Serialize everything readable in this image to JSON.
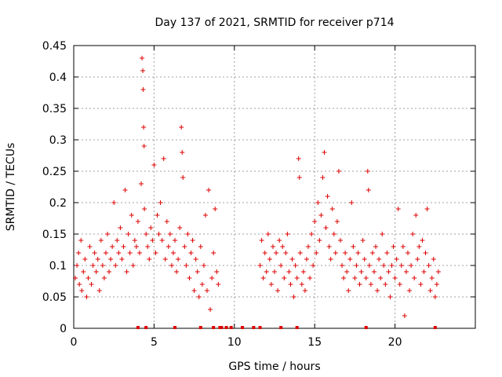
{
  "chart_data": {
    "type": "scatter",
    "title": "Day 137 of 2021, SRMTID for receiver p714",
    "xlabel": "GPS time / hours",
    "ylabel": "SRMTID / TECUs",
    "xlim": [
      0,
      25
    ],
    "ylim": [
      0,
      0.45
    ],
    "grid": true,
    "marker": "+",
    "color": "#dd0000",
    "x_ticks": [
      0,
      5,
      10,
      15,
      20
    ],
    "x_tick_labels": [
      "0",
      "5",
      "10",
      "15",
      "20"
    ],
    "y_ticks": [
      0,
      0.05,
      0.1,
      0.15,
      0.2,
      0.25,
      0.3,
      0.35,
      0.4,
      0.45
    ],
    "y_tick_labels": [
      "0",
      "0.05",
      "0.1",
      "0.15",
      "0.2",
      "0.25",
      "0.3",
      "0.35",
      "0.4",
      "0.45"
    ],
    "series": [
      {
        "name": "SRMTID",
        "points": [
          [
            0.1,
            0.08
          ],
          [
            0.2,
            0.1
          ],
          [
            0.3,
            0.12
          ],
          [
            0.35,
            0.07
          ],
          [
            0.45,
            0.14
          ],
          [
            0.5,
            0.06
          ],
          [
            0.6,
            0.09
          ],
          [
            0.7,
            0.11
          ],
          [
            0.8,
            0.05
          ],
          [
            0.9,
            0.08
          ],
          [
            1.0,
            0.13
          ],
          [
            1.1,
            0.07
          ],
          [
            1.2,
            0.1
          ],
          [
            1.3,
            0.12
          ],
          [
            1.4,
            0.09
          ],
          [
            1.5,
            0.11
          ],
          [
            1.6,
            0.06
          ],
          [
            1.7,
            0.14
          ],
          [
            1.8,
            0.1
          ],
          [
            1.9,
            0.08
          ],
          [
            2.0,
            0.12
          ],
          [
            2.1,
            0.15
          ],
          [
            2.2,
            0.09
          ],
          [
            2.3,
            0.11
          ],
          [
            2.4,
            0.13
          ],
          [
            2.5,
            0.2
          ],
          [
            2.6,
            0.1
          ],
          [
            2.7,
            0.14
          ],
          [
            2.8,
            0.12
          ],
          [
            2.9,
            0.16
          ],
          [
            3.0,
            0.11
          ],
          [
            3.1,
            0.13
          ],
          [
            3.2,
            0.22
          ],
          [
            3.3,
            0.09
          ],
          [
            3.4,
            0.15
          ],
          [
            3.5,
            0.12
          ],
          [
            3.6,
            0.18
          ],
          [
            3.7,
            0.1
          ],
          [
            3.8,
            0.14
          ],
          [
            3.9,
            0.13
          ],
          [
            4.0,
            0.17
          ],
          [
            4.1,
            0.12
          ],
          [
            4.2,
            0.23
          ],
          [
            4.25,
            0.43
          ],
          [
            4.3,
            0.41
          ],
          [
            4.32,
            0.38
          ],
          [
            4.35,
            0.32
          ],
          [
            4.38,
            0.29
          ],
          [
            4.4,
            0.19
          ],
          [
            4.5,
            0.15
          ],
          [
            4.6,
            0.13
          ],
          [
            4.7,
            0.11
          ],
          [
            4.8,
            0.16
          ],
          [
            4.9,
            0.14
          ],
          [
            5.0,
            0.26
          ],
          [
            5.1,
            0.12
          ],
          [
            5.2,
            0.18
          ],
          [
            5.3,
            0.15
          ],
          [
            5.4,
            0.2
          ],
          [
            5.5,
            0.14
          ],
          [
            5.6,
            0.27
          ],
          [
            5.7,
            0.11
          ],
          [
            5.8,
            0.17
          ],
          [
            5.9,
            0.13
          ],
          [
            6.0,
            0.15
          ],
          [
            6.1,
            0.1
          ],
          [
            6.2,
            0.12
          ],
          [
            6.3,
            0.14
          ],
          [
            6.4,
            0.09
          ],
          [
            6.5,
            0.11
          ],
          [
            6.6,
            0.16
          ],
          [
            6.7,
            0.32
          ],
          [
            6.75,
            0.28
          ],
          [
            6.8,
            0.24
          ],
          [
            6.9,
            0.13
          ],
          [
            7.0,
            0.1
          ],
          [
            7.1,
            0.15
          ],
          [
            7.2,
            0.08
          ],
          [
            7.3,
            0.12
          ],
          [
            7.4,
            0.14
          ],
          [
            7.5,
            0.06
          ],
          [
            7.6,
            0.11
          ],
          [
            7.7,
            0.09
          ],
          [
            7.8,
            0.05
          ],
          [
            7.9,
            0.13
          ],
          [
            8.0,
            0.07
          ],
          [
            8.1,
            0.1
          ],
          [
            8.2,
            0.18
          ],
          [
            8.3,
            0.06
          ],
          [
            8.4,
            0.22
          ],
          [
            8.5,
            0.03
          ],
          [
            8.6,
            0.08
          ],
          [
            8.7,
            0.12
          ],
          [
            8.8,
            0.19
          ],
          [
            8.9,
            0.09
          ],
          [
            9.0,
            0.07
          ],
          [
            11.6,
            0.1
          ],
          [
            11.7,
            0.14
          ],
          [
            11.8,
            0.08
          ],
          [
            11.9,
            0.12
          ],
          [
            12.0,
            0.09
          ],
          [
            12.1,
            0.15
          ],
          [
            12.2,
            0.11
          ],
          [
            12.3,
            0.07
          ],
          [
            12.4,
            0.13
          ],
          [
            12.5,
            0.09
          ],
          [
            12.6,
            0.12
          ],
          [
            12.7,
            0.06
          ],
          [
            12.8,
            0.14
          ],
          [
            12.9,
            0.1
          ],
          [
            13.0,
            0.13
          ],
          [
            13.1,
            0.08
          ],
          [
            13.2,
            0.12
          ],
          [
            13.3,
            0.15
          ],
          [
            13.4,
            0.09
          ],
          [
            13.5,
            0.07
          ],
          [
            13.6,
            0.11
          ],
          [
            13.7,
            0.05
          ],
          [
            13.8,
            0.1
          ],
          [
            13.9,
            0.08
          ],
          [
            14.0,
            0.27
          ],
          [
            14.05,
            0.24
          ],
          [
            14.1,
            0.12
          ],
          [
            14.2,
            0.07
          ],
          [
            14.3,
            0.09
          ],
          [
            14.4,
            0.06
          ],
          [
            14.5,
            0.11
          ],
          [
            14.6,
            0.13
          ],
          [
            14.7,
            0.08
          ],
          [
            14.8,
            0.15
          ],
          [
            14.9,
            0.1
          ],
          [
            15.0,
            0.17
          ],
          [
            15.1,
            0.12
          ],
          [
            15.2,
            0.2
          ],
          [
            15.3,
            0.14
          ],
          [
            15.4,
            0.18
          ],
          [
            15.5,
            0.24
          ],
          [
            15.6,
            0.28
          ],
          [
            15.7,
            0.16
          ],
          [
            15.8,
            0.21
          ],
          [
            15.9,
            0.13
          ],
          [
            16.0,
            0.11
          ],
          [
            16.1,
            0.19
          ],
          [
            16.2,
            0.15
          ],
          [
            16.3,
            0.12
          ],
          [
            16.4,
            0.17
          ],
          [
            16.5,
            0.25
          ],
          [
            16.6,
            0.14
          ],
          [
            16.7,
            0.1
          ],
          [
            16.8,
            0.08
          ],
          [
            16.9,
            0.12
          ],
          [
            17.0,
            0.09
          ],
          [
            17.1,
            0.06
          ],
          [
            17.2,
            0.11
          ],
          [
            17.3,
            0.2
          ],
          [
            17.4,
            0.13
          ],
          [
            17.5,
            0.08
          ],
          [
            17.6,
            0.1
          ],
          [
            17.7,
            0.12
          ],
          [
            17.8,
            0.07
          ],
          [
            17.9,
            0.09
          ],
          [
            18.0,
            0.14
          ],
          [
            18.1,
            0.11
          ],
          [
            18.2,
            0.08
          ],
          [
            18.3,
            0.25
          ],
          [
            18.35,
            0.22
          ],
          [
            18.4,
            0.1
          ],
          [
            18.5,
            0.07
          ],
          [
            18.6,
            0.12
          ],
          [
            18.7,
            0.09
          ],
          [
            18.8,
            0.13
          ],
          [
            18.9,
            0.06
          ],
          [
            19.0,
            0.11
          ],
          [
            19.1,
            0.08
          ],
          [
            19.2,
            0.15
          ],
          [
            19.3,
            0.1
          ],
          [
            19.4,
            0.07
          ],
          [
            19.5,
            0.12
          ],
          [
            19.6,
            0.09
          ],
          [
            19.7,
            0.05
          ],
          [
            19.8,
            0.1
          ],
          [
            19.9,
            0.13
          ],
          [
            20.0,
            0.08
          ],
          [
            20.1,
            0.11
          ],
          [
            20.2,
            0.19
          ],
          [
            20.3,
            0.07
          ],
          [
            20.4,
            0.1
          ],
          [
            20.5,
            0.13
          ],
          [
            20.6,
            0.02
          ],
          [
            20.7,
            0.09
          ],
          [
            20.8,
            0.12
          ],
          [
            20.9,
            0.06
          ],
          [
            21.0,
            0.1
          ],
          [
            21.1,
            0.15
          ],
          [
            21.2,
            0.08
          ],
          [
            21.3,
            0.18
          ],
          [
            21.4,
            0.11
          ],
          [
            21.5,
            0.13
          ],
          [
            21.6,
            0.07
          ],
          [
            21.7,
            0.14
          ],
          [
            21.8,
            0.09
          ],
          [
            21.9,
            0.12
          ],
          [
            22.0,
            0.19
          ],
          [
            22.1,
            0.1
          ],
          [
            22.2,
            0.06
          ],
          [
            22.3,
            0.08
          ],
          [
            22.4,
            0.11
          ],
          [
            22.5,
            0.05
          ],
          [
            22.6,
            0.07
          ],
          [
            22.7,
            0.09
          ]
        ]
      }
    ],
    "baseline_markers_x": [
      4.0,
      4.5,
      6.3,
      7.9,
      8.7,
      9.1,
      9.2,
      9.5,
      9.8,
      10.5,
      11.2,
      11.6,
      12.9,
      13.9,
      18.2,
      22.5
    ]
  }
}
